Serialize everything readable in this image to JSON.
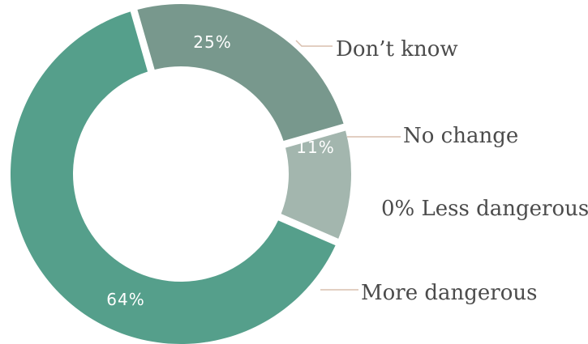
{
  "chart_data": {
    "type": "pie",
    "donut": true,
    "start_angle_deg": -16,
    "slices": [
      {
        "label": "Don’t know",
        "value": 25,
        "value_label": "25%",
        "color": "#78988d"
      },
      {
        "label": "No change",
        "value": 11,
        "value_label": "11%",
        "color": "#a3b6ae"
      },
      {
        "label": "Less dangerous",
        "value": 0,
        "value_label": "0%",
        "color": "#d0dcd6"
      },
      {
        "label": "More dangerous",
        "value": 64,
        "value_label": "64%",
        "color": "#559f8b"
      }
    ],
    "label_texts": [
      "Don’t know",
      "No change",
      "0% Less dangerous",
      "More dangerous"
    ]
  }
}
